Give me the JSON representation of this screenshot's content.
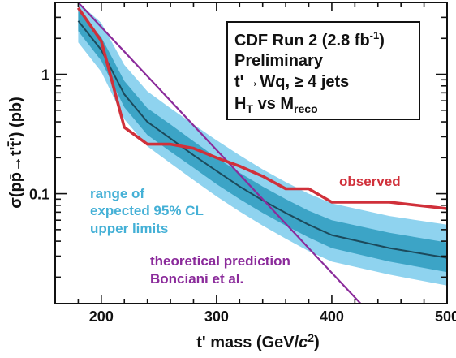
{
  "chart_data": {
    "type": "line",
    "x_scale": "linear",
    "y_scale": "log",
    "xlim": [
      160,
      500
    ],
    "ylim": [
      0.012,
      4
    ],
    "xlabel_main": "t' mass  (GeV/",
    "xlabel_c": "c",
    "xlabel_exp": "2",
    "xlabel_close": ")",
    "ylabel": "σ(pp̄→t't̄') (pb)",
    "x_ticks": [
      200,
      300,
      400,
      500
    ],
    "x_tick_labels": [
      "200",
      "300",
      "400",
      "500"
    ],
    "y_ticks": [
      0.1,
      1
    ],
    "y_tick_labels": [
      "0.1",
      "1"
    ],
    "info_box": {
      "line1_main": "CDF Run 2 (2.8 fb",
      "line1_sup": "-1",
      "line1_close": ")",
      "line2": "Preliminary",
      "line3": "t'→Wq, ≥ 4 jets",
      "line4_a": "H",
      "line4_a_sub": "T",
      "line4_b": " vs M",
      "line4_b_sub": "reco"
    },
    "series": [
      {
        "name": "observed",
        "color": "#d0303a",
        "x": [
          180,
          200,
          220,
          240,
          260,
          280,
          300,
          320,
          340,
          360,
          380,
          400,
          450,
          500
        ],
        "values": [
          3.6,
          1.9,
          0.36,
          0.26,
          0.26,
          0.24,
          0.2,
          0.17,
          0.14,
          0.11,
          0.11,
          0.085,
          0.085,
          0.075
        ]
      },
      {
        "name": "expected median",
        "color": "#1c4a5c",
        "x": [
          180,
          200,
          220,
          240,
          260,
          280,
          300,
          320,
          340,
          360,
          380,
          400,
          450,
          500
        ],
        "values": [
          2.8,
          1.6,
          0.68,
          0.4,
          0.29,
          0.21,
          0.155,
          0.115,
          0.088,
          0.069,
          0.055,
          0.045,
          0.035,
          0.029
        ]
      },
      {
        "name": "theoretical prediction",
        "color": "#8b2b9b",
        "x": [
          180,
          425
        ],
        "values": [
          4.0,
          0.012
        ]
      }
    ],
    "bands": {
      "x": [
        180,
        200,
        220,
        240,
        260,
        280,
        300,
        320,
        340,
        360,
        380,
        400,
        450,
        500
      ],
      "outer_color": "#8fd3ef",
      "inner_color": "#3ca4c6",
      "outer_lo": [
        1.85,
        1.05,
        0.42,
        0.25,
        0.18,
        0.13,
        0.095,
        0.071,
        0.054,
        0.042,
        0.033,
        0.027,
        0.021,
        0.017
      ],
      "outer_hi": [
        4.0,
        2.7,
        1.2,
        0.72,
        0.52,
        0.38,
        0.28,
        0.21,
        0.16,
        0.125,
        0.1,
        0.083,
        0.065,
        0.055
      ],
      "inner_lo": [
        2.3,
        1.3,
        0.53,
        0.31,
        0.225,
        0.165,
        0.12,
        0.09,
        0.069,
        0.054,
        0.043,
        0.035,
        0.027,
        0.022
      ],
      "inner_hi": [
        3.4,
        2.05,
        0.88,
        0.52,
        0.38,
        0.275,
        0.2,
        0.15,
        0.115,
        0.09,
        0.072,
        0.06,
        0.047,
        0.039
      ]
    },
    "annotations": {
      "observed": "observed",
      "range_1": "range of",
      "range_2": "expected 95% CL",
      "range_3": "upper limits",
      "theory_1": "theoretical prediction",
      "theory_2": "Bonciani et al."
    },
    "colors": {
      "observed_label": "#d0303a",
      "range_label": "#44b0d6",
      "theory_label": "#8b2b9b"
    }
  }
}
